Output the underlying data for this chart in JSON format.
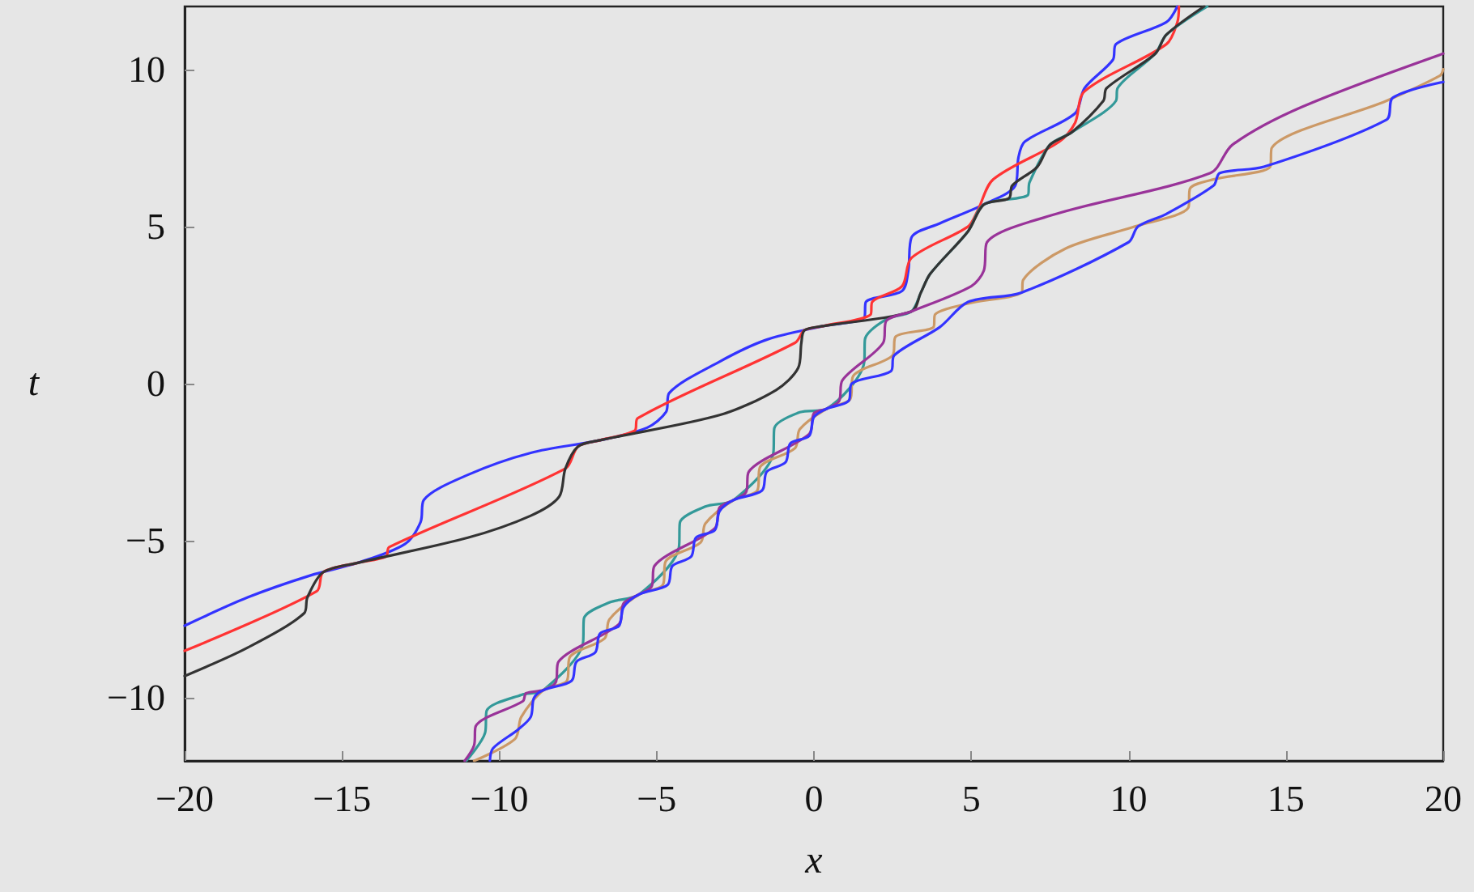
{
  "chart_data": {
    "type": "line",
    "xlabel": "x",
    "ylabel": "t",
    "xlim": [
      -20,
      20
    ],
    "ylim": [
      -12,
      12
    ],
    "xticks": [
      -20,
      -15,
      -10,
      -5,
      0,
      5,
      10,
      15,
      20
    ],
    "yticks": [
      -10,
      -5,
      0,
      5,
      10
    ],
    "grid": false,
    "marker": "none",
    "line_style": "solid",
    "series": [
      {
        "color": "#3333ff",
        "x": [
          -20,
          -18,
          -16,
          -14.5,
          -13,
          -12.5,
          -12.4,
          -11,
          -9,
          -6.8,
          -5.3,
          -4.7,
          -4.6,
          -3,
          -1.5,
          0.28,
          1.6,
          1.65,
          2.8,
          3.0,
          3.1,
          4.0,
          5.4,
          6.4,
          6.5,
          6.7,
          8.3,
          8.6,
          9.5,
          9.6,
          11.2,
          11.55
        ],
        "values": [
          -7.7,
          -6.8,
          -6.1,
          -5.7,
          -5.1,
          -4.4,
          -3.7,
          -2.9,
          -2.2,
          -1.8,
          -1.4,
          -0.9,
          -0.3,
          0.7,
          1.4,
          1.83,
          2.1,
          2.6,
          2.95,
          3.6,
          4.65,
          5.1,
          5.7,
          6.3,
          7.2,
          7.7,
          8.6,
          9.4,
          10.3,
          10.8,
          11.5,
          12
        ]
      },
      {
        "color": "#ff3333",
        "x": [
          -20,
          -15.8,
          -15.6,
          -14.5,
          -13.6,
          -13.5,
          -7.9,
          -7.5,
          -6.8,
          -5.7,
          -5.6,
          -0.6,
          -0.3,
          0.28,
          1.8,
          1.85,
          2.8,
          3.1,
          4.9,
          5.2,
          5.7,
          7.8,
          8.3,
          8.6,
          11.2,
          11.55,
          11.6
        ],
        "values": [
          -8.5,
          -6.6,
          -6.0,
          -5.7,
          -5.5,
          -5.2,
          -2.7,
          -2.0,
          -1.8,
          -1.5,
          -1.1,
          1.3,
          1.7,
          1.83,
          2.2,
          2.6,
          3.1,
          4.0,
          5.0,
          5.5,
          6.5,
          7.7,
          8.3,
          9.3,
          10.8,
          11.5,
          12
        ]
      },
      {
        "color": "#339999",
        "x": [
          -11.05,
          -10.45,
          -10.4,
          -9.3,
          -8.6,
          -7.34,
          -7.31,
          -6.5,
          -5.55,
          -4.29,
          -4.26,
          -3.45,
          -2.55,
          -1.29,
          -1.26,
          -0.45,
          0.4,
          1.6,
          1.62,
          2.3,
          3.1,
          3.4,
          3.7,
          4.9,
          5.4,
          6.8,
          6.85,
          7.5,
          8.2,
          9.6,
          9.65,
          10.85,
          11.2,
          12.5
        ],
        "values": [
          -12,
          -11.1,
          -10.4,
          -9.9,
          -9.75,
          -8.25,
          -7.47,
          -6.96,
          -6.7,
          -5.2,
          -4.42,
          -3.91,
          -3.7,
          -2.2,
          -1.42,
          -0.91,
          -0.8,
          0.7,
          1.4,
          2.05,
          2.3,
          2.9,
          3.5,
          4.85,
          5.7,
          6.0,
          6.4,
          7.6,
          8.0,
          9.0,
          9.4,
          10.5,
          11.1,
          12
        ]
      },
      {
        "color": "#333333",
        "x": [
          -20,
          -18,
          -16.2,
          -16.1,
          -15.6,
          -14.5,
          -11,
          -9,
          -8.1,
          -7.9,
          -7.5,
          -6.8,
          -3,
          -1.2,
          -0.5,
          -0.4,
          -0.3,
          0.28,
          3.1,
          3.4,
          3.7,
          4.9,
          5.4,
          6.2,
          6.3,
          7.1,
          7.5,
          8.2,
          9.2,
          9.3,
          10.85,
          11.2,
          12.4
        ],
        "values": [
          -9.3,
          -8.4,
          -7.3,
          -6.8,
          -6.0,
          -5.7,
          -4.9,
          -4.2,
          -3.6,
          -2.7,
          -2.0,
          -1.8,
          -1.0,
          -0.2,
          0.5,
          1.3,
          1.7,
          1.83,
          2.3,
          2.9,
          3.5,
          4.85,
          5.7,
          5.9,
          6.3,
          6.9,
          7.6,
          8.0,
          9.0,
          9.4,
          10.5,
          11.1,
          12
        ]
      },
      {
        "color": "#cc9966",
        "x": [
          -10.8,
          -9.5,
          -9.3,
          -8.6,
          -7.85,
          -7.76,
          -6.65,
          -6.5,
          -5.55,
          -4.8,
          -4.71,
          -3.6,
          -3.45,
          -2.55,
          -1.8,
          -1.71,
          -0.6,
          -0.45,
          0.4,
          1.15,
          1.25,
          2.5,
          2.6,
          3.8,
          3.85,
          4.9,
          6.6,
          6.65,
          8,
          10.2,
          11.9,
          11.95,
          12.7,
          14.5,
          14.55,
          18.2,
          19.9,
          20
        ],
        "values": [
          -12,
          -11.3,
          -10.6,
          -9.75,
          -9.45,
          -8.7,
          -8.1,
          -7.5,
          -6.7,
          -6.4,
          -5.65,
          -5.05,
          -4.45,
          -3.7,
          -3.4,
          -2.65,
          -2.05,
          -1.45,
          -0.8,
          -0.5,
          0.25,
          0.9,
          1.5,
          1.8,
          2.2,
          2.55,
          2.9,
          3.3,
          4.3,
          5.0,
          5.6,
          6.2,
          6.5,
          6.9,
          7.5,
          9.0,
          9.8,
          10.0
        ]
      },
      {
        "color": "#993399",
        "x": [
          -11.1,
          -10.8,
          -10.75,
          -9.25,
          -9.15,
          -8.6,
          -8.21,
          -8.12,
          -6.2,
          -6.05,
          -5.55,
          -5.16,
          -5.07,
          -3.15,
          -3.0,
          -2.55,
          -2.16,
          -2.07,
          -0.15,
          0.0,
          0.4,
          0.8,
          0.9,
          2.2,
          2.3,
          3.1,
          5.0,
          5.4,
          5.5,
          7.7,
          12.6,
          13.3,
          15.5,
          20
        ],
        "values": [
          -12,
          -11.5,
          -10.9,
          -10.1,
          -9.85,
          -9.75,
          -9.51,
          -8.85,
          -7.65,
          -6.99,
          -6.7,
          -6.46,
          -5.8,
          -4.6,
          -3.94,
          -3.7,
          -3.46,
          -2.8,
          -1.6,
          -0.94,
          -0.8,
          -0.55,
          0.1,
          1.3,
          2.0,
          2.3,
          3.1,
          3.6,
          4.5,
          5.4,
          6.7,
          7.6,
          8.8,
          10.5
        ]
      },
      {
        "color": "#3333ff",
        "x": [
          -10.3,
          -10.2,
          -9.4,
          -9.0,
          -8.9,
          -8.6,
          -7.7,
          -7.55,
          -6.95,
          -6.8,
          -6.2,
          -6.05,
          -5.55,
          -4.65,
          -4.5,
          -3.9,
          -3.75,
          -3.15,
          -3.0,
          -2.55,
          -1.65,
          -1.5,
          -0.9,
          -0.75,
          -0.15,
          0.0,
          0.4,
          1.1,
          1.2,
          2.45,
          2.55,
          4.0,
          4.9,
          6.6,
          10,
          10.3,
          11.2,
          12.7,
          12.9,
          14.3,
          18.2,
          18.4,
          20
        ],
        "values": [
          -12,
          -11.6,
          -11.0,
          -10.6,
          -10.0,
          -9.75,
          -9.45,
          -8.85,
          -8.55,
          -7.95,
          -7.71,
          -7.11,
          -6.7,
          -6.4,
          -5.8,
          -5.5,
          -4.9,
          -4.66,
          -4.06,
          -3.7,
          -3.4,
          -2.8,
          -2.5,
          -1.9,
          -1.66,
          -1.06,
          -0.8,
          -0.55,
          0.0,
          0.4,
          0.9,
          1.8,
          2.6,
          2.9,
          4.5,
          5.0,
          5.4,
          6.3,
          6.7,
          6.9,
          8.4,
          9.1,
          9.6
        ]
      }
    ]
  }
}
